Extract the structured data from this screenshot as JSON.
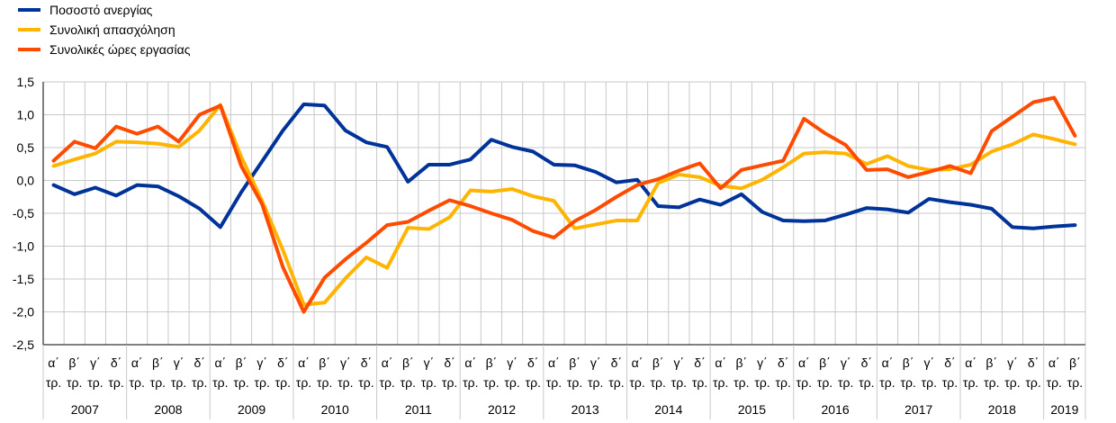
{
  "chart_data": {
    "type": "line",
    "title": "",
    "xlabel": "",
    "ylabel": "",
    "ylim": [
      -2.5,
      1.5
    ],
    "yticks": [
      "1,5",
      "1,0",
      "0,5",
      "0,0",
      "-0,5",
      "-1,0",
      "-1,5",
      "-2,0",
      "-2,5"
    ],
    "ytick_values": [
      1.5,
      1.0,
      0.5,
      0.0,
      -0.5,
      -1.0,
      -1.5,
      -2.0,
      -2.5
    ],
    "grid": true,
    "legend_position": "top-left",
    "quarter_labels": [
      "α΄",
      "β΄",
      "γ΄",
      "δ΄"
    ],
    "period_suffix": "τρ.",
    "years": [
      "2007",
      "2008",
      "2009",
      "2010",
      "2011",
      "2012",
      "2013",
      "2014",
      "2015",
      "2016",
      "2017",
      "2018",
      "2019"
    ],
    "year_quarter_counts": [
      4,
      4,
      4,
      4,
      4,
      4,
      4,
      4,
      4,
      4,
      4,
      4,
      2
    ],
    "colors": {
      "grid": "#c8c8c8",
      "axis": "#000000"
    },
    "series": [
      {
        "name": "Ποσοστό ανεργίας",
        "color": "#003399",
        "values": [
          -0.07,
          -0.21,
          -0.11,
          -0.23,
          -0.07,
          -0.09,
          -0.24,
          -0.43,
          -0.71,
          -0.18,
          0.29,
          0.76,
          1.16,
          1.14,
          0.76,
          0.58,
          0.51,
          -0.02,
          0.24,
          0.24,
          0.32,
          0.62,
          0.51,
          0.44,
          0.24,
          0.23,
          0.13,
          -0.03,
          0.01,
          -0.39,
          -0.41,
          -0.29,
          -0.37,
          -0.21,
          -0.48,
          -0.61,
          -0.62,
          -0.61,
          -0.52,
          -0.42,
          -0.44,
          -0.49,
          -0.28,
          -0.33,
          -0.37,
          -0.43,
          -0.71,
          -0.73,
          -0.7,
          -0.68
        ]
      },
      {
        "name": "Συνολική απασχόληση",
        "color": "#ffb400",
        "values": [
          0.22,
          0.32,
          0.41,
          0.59,
          0.58,
          0.56,
          0.51,
          0.76,
          1.15,
          0.36,
          -0.31,
          -1.06,
          -1.89,
          -1.86,
          -1.49,
          -1.17,
          -1.33,
          -0.72,
          -0.74,
          -0.56,
          -0.15,
          -0.17,
          -0.13,
          -0.24,
          -0.31,
          -0.73,
          -0.67,
          -0.61,
          -0.61,
          -0.04,
          0.09,
          0.05,
          -0.08,
          -0.12,
          0.01,
          0.2,
          0.41,
          0.43,
          0.41,
          0.25,
          0.37,
          0.22,
          0.16,
          0.17,
          0.24,
          0.44,
          0.55,
          0.7,
          0.63,
          0.55
        ]
      },
      {
        "name": "Συνολικές ώρες εργασίας",
        "color": "#ff4b00",
        "values": [
          0.3,
          0.59,
          0.49,
          0.82,
          0.71,
          0.82,
          0.59,
          1.0,
          1.14,
          0.22,
          -0.36,
          -1.32,
          -2.0,
          -1.48,
          -1.2,
          -0.95,
          -0.68,
          -0.63,
          -0.46,
          -0.3,
          -0.39,
          -0.5,
          -0.6,
          -0.77,
          -0.87,
          -0.62,
          -0.45,
          -0.25,
          -0.07,
          0.02,
          0.15,
          0.26,
          -0.12,
          0.16,
          0.23,
          0.3,
          0.94,
          0.72,
          0.54,
          0.16,
          0.17,
          0.05,
          0.13,
          0.22,
          0.11,
          0.75,
          0.97,
          1.19,
          1.26,
          0.68
        ]
      }
    ]
  }
}
